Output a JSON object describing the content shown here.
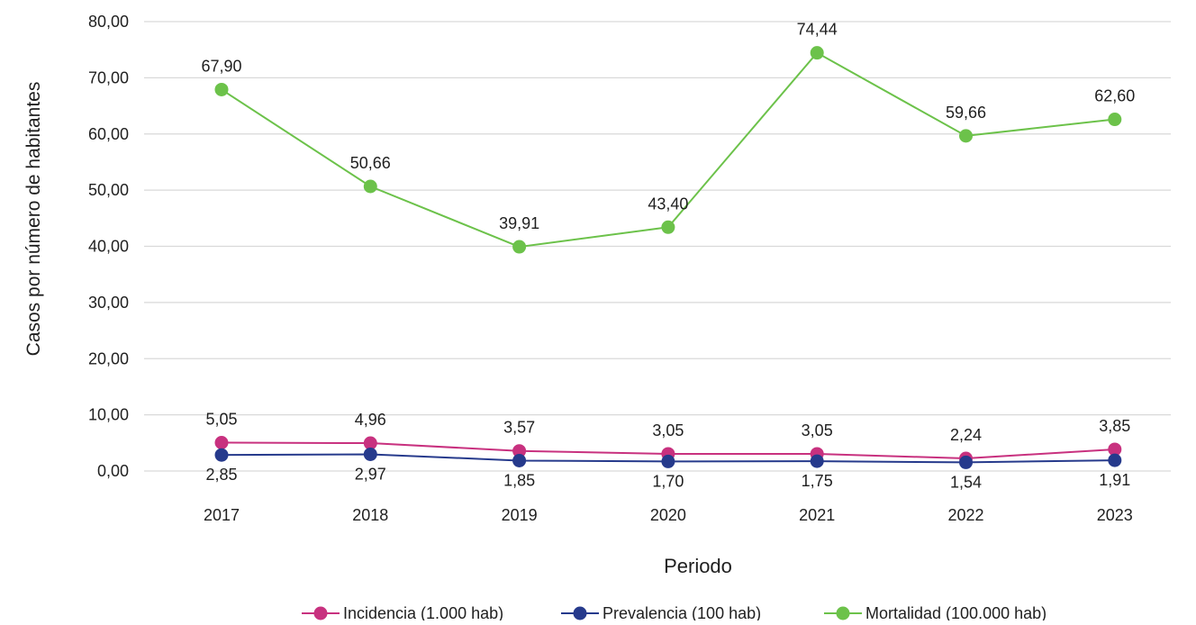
{
  "chart_data": {
    "type": "line",
    "title": "",
    "xlabel": "Periodo",
    "ylabel": "Casos por número de habitantes",
    "ylim": [
      0,
      80
    ],
    "yticks": [
      "0,00",
      "10,00",
      "20,00",
      "30,00",
      "40,00",
      "50,00",
      "60,00",
      "70,00",
      "80,00"
    ],
    "categories": [
      "2017",
      "2018",
      "2019",
      "2020",
      "2021",
      "2022",
      "2023"
    ],
    "grid": true,
    "legend_position": "bottom",
    "series": [
      {
        "name": "Incidencia (1.000 hab)",
        "color": "#c8317f",
        "values": [
          5.05,
          4.96,
          3.57,
          3.05,
          3.05,
          2.24,
          3.85
        ],
        "labels": [
          "5,05",
          "4,96",
          "3,57",
          "3,05",
          "3,05",
          "2,24",
          "3,85"
        ],
        "label_position": "above"
      },
      {
        "name": "Prevalencia (100 hab)",
        "color": "#263a8c",
        "values": [
          2.85,
          2.97,
          1.85,
          1.7,
          1.75,
          1.54,
          1.91
        ],
        "labels": [
          "2,85",
          "2,97",
          "1,85",
          "1,70",
          "1,75",
          "1,54",
          "1,91"
        ],
        "label_position": "below"
      },
      {
        "name": "Mortalidad (100.000 hab)",
        "color": "#6cc24a",
        "values": [
          67.9,
          50.66,
          39.91,
          43.4,
          74.44,
          59.66,
          62.6
        ],
        "labels": [
          "67,90",
          "50,66",
          "39,91",
          "43,40",
          "74,44",
          "59,66",
          "62,60"
        ],
        "label_position": "above"
      }
    ]
  }
}
